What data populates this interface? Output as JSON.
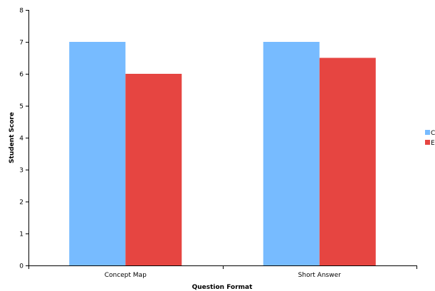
{
  "chart_data": {
    "type": "bar",
    "title": "",
    "xlabel": "Question Format",
    "ylabel": "Student Score",
    "categories": [
      "Concept Map",
      "Short Answer"
    ],
    "series": [
      {
        "name": "C",
        "values": [
          7,
          7
        ],
        "color": "#77BBFF"
      },
      {
        "name": "E",
        "values": [
          6,
          6.5
        ],
        "color": "#E64541"
      }
    ],
    "ylim": [
      0,
      8
    ],
    "yticks": [
      "0",
      "1",
      "2",
      "3",
      "4",
      "5",
      "6",
      "7",
      "8"
    ],
    "grid": false,
    "legend_position": "right"
  }
}
